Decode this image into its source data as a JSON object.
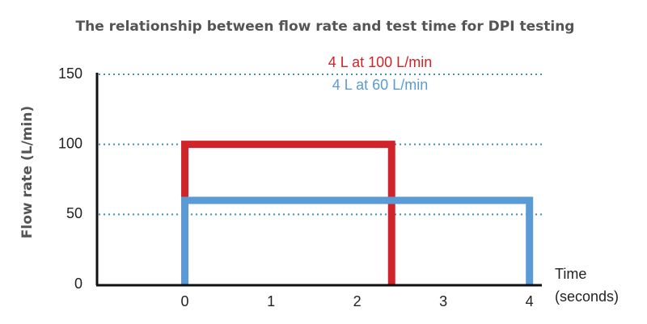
{
  "chart_data": {
    "type": "line",
    "title": "The relationship between flow rate and test time for DPI testing",
    "y_label": "Flow rate (L/min)",
    "x_label": [
      "Time",
      "(seconds)"
    ],
    "xlim": [
      -1,
      4.2
    ],
    "xticks": [
      0,
      1,
      2,
      3,
      4
    ],
    "ylim": [
      0,
      150
    ],
    "yticks": [
      0,
      50,
      100,
      150
    ],
    "grid": true,
    "series": [
      {
        "name": "4 L at 100 L/min",
        "color": "#d1232a",
        "x": [
          0,
          0,
          2.4,
          2.4
        ],
        "values": [
          0,
          100,
          100,
          0
        ]
      },
      {
        "name": "4 L at 60 L/min",
        "color": "#5b9bd5",
        "x": [
          0,
          0,
          4,
          4
        ],
        "values": [
          0,
          60,
          60,
          0
        ]
      }
    ]
  }
}
